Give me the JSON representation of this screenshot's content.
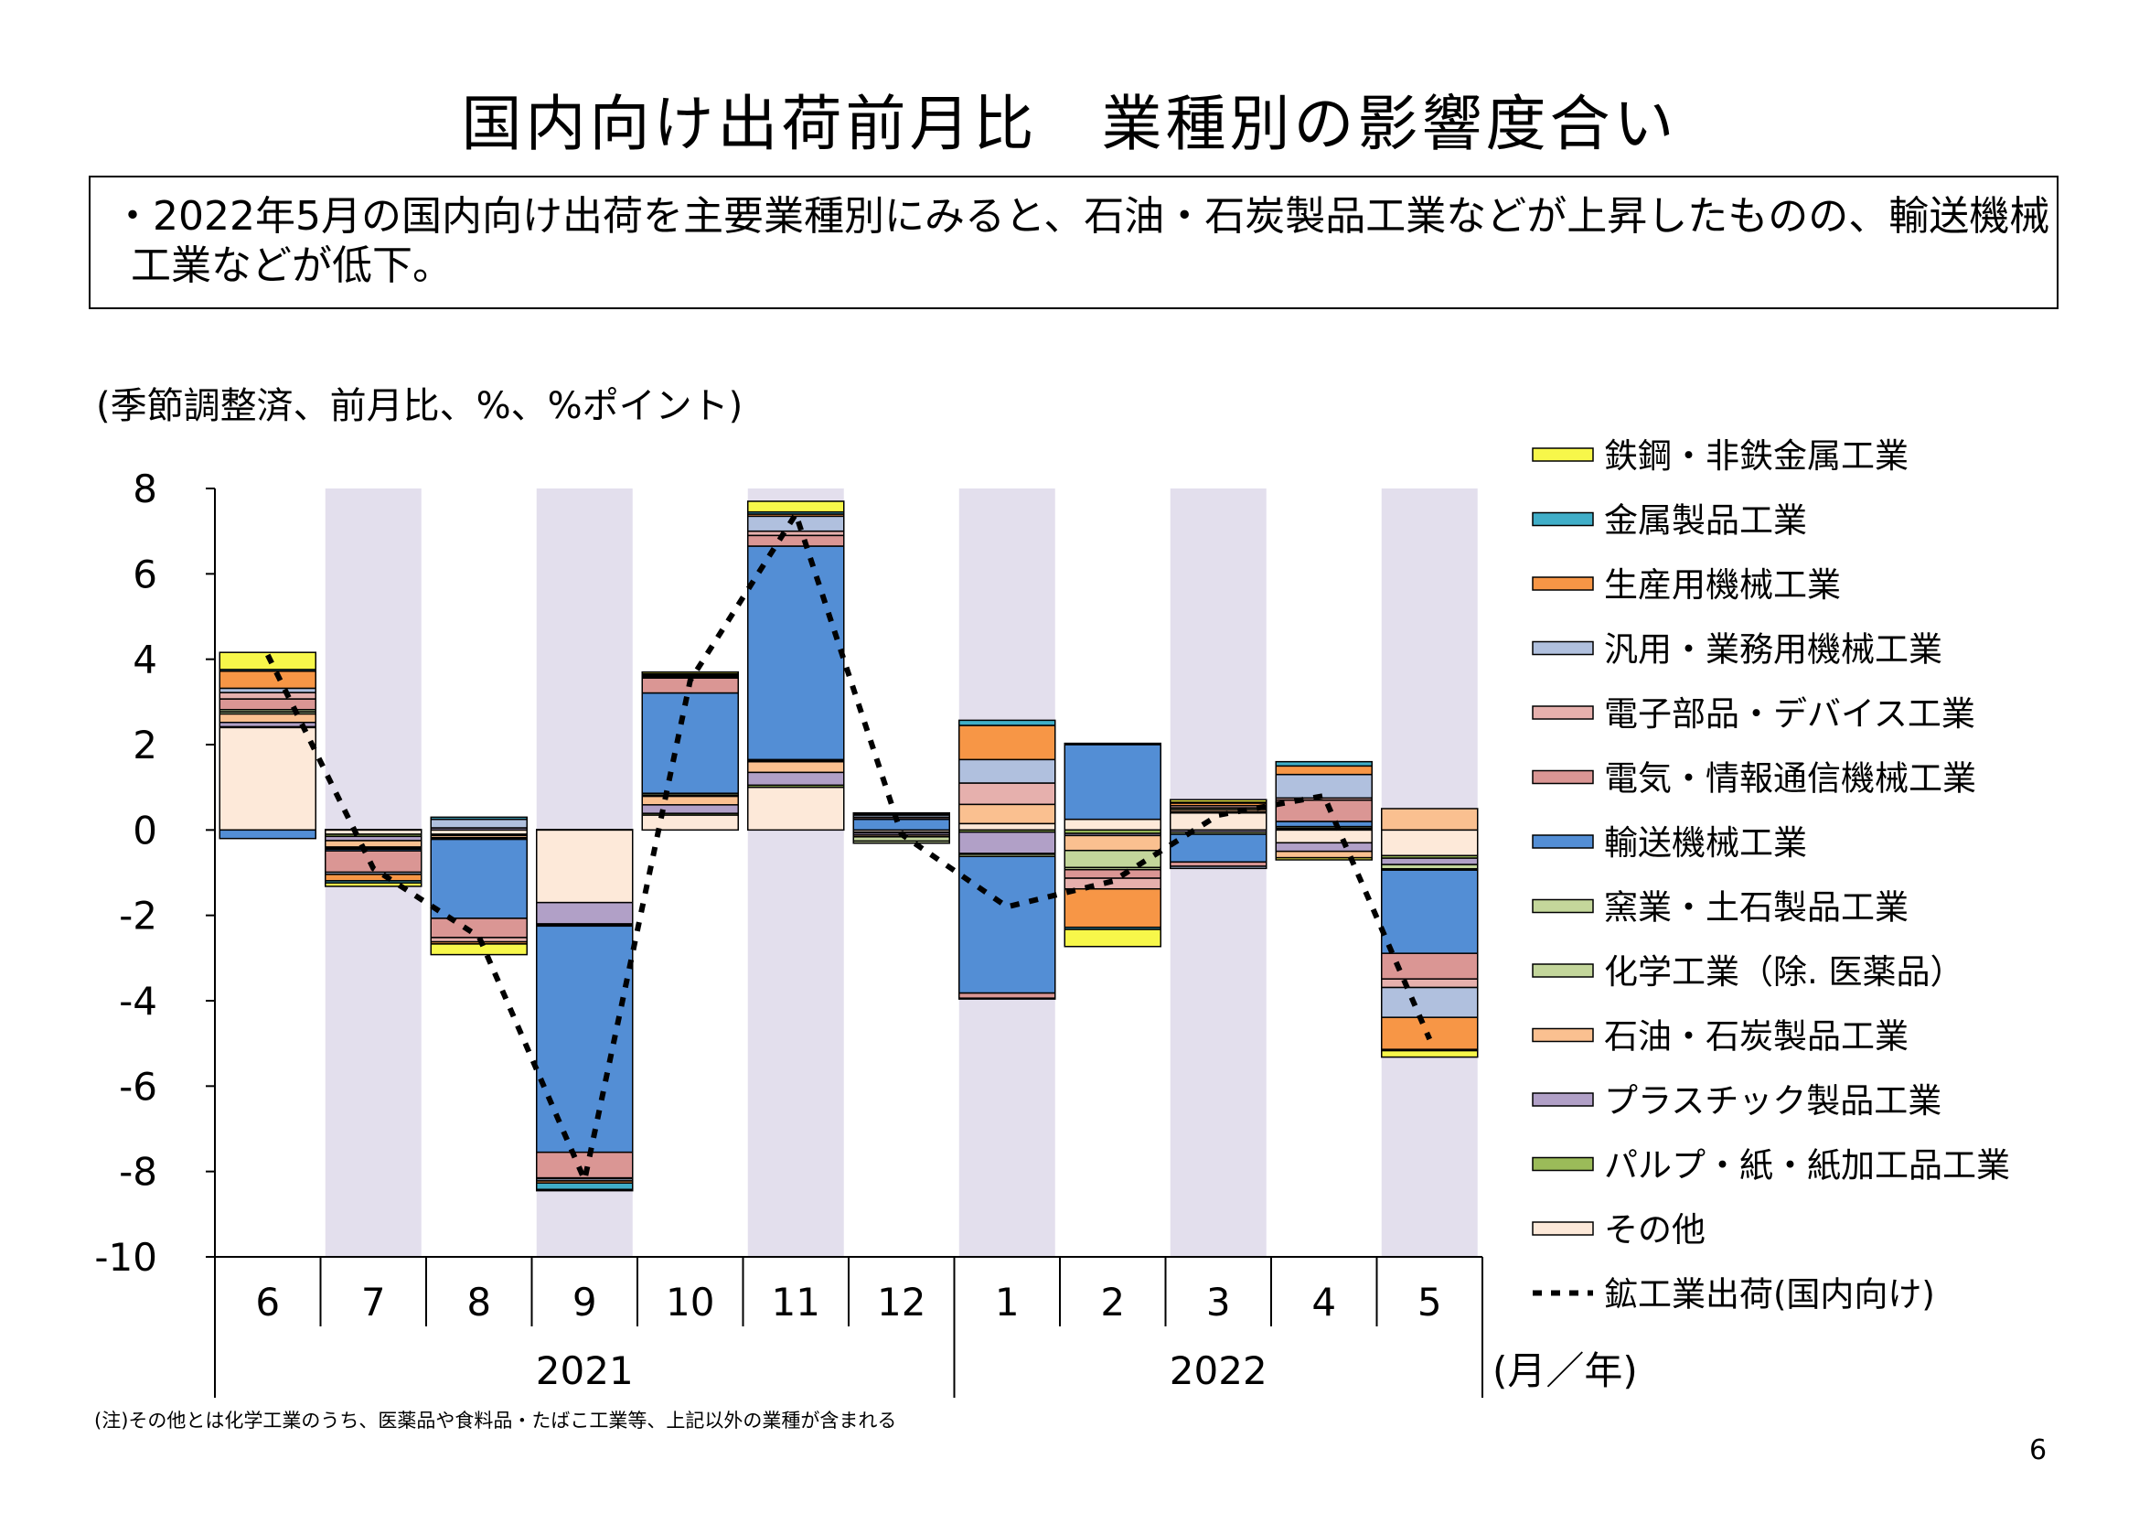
{
  "title": "国内向け出荷前月比　業種別の影響度合い",
  "summary": "・2022年5月の国内向け出荷を主要業種別にみると、石油・石炭製品工業などが上昇したものの、輸送機械工業などが低下。",
  "footnote": "(注)その他とは化学工業のうち、医薬品や食料品・たばこ工業等、上記以外の業種が含まれる",
  "page_number": "6",
  "chart_data": {
    "type": "bar",
    "stacked": true,
    "unit_label": "(季節調整済、前月比、%、%ポイント)",
    "ylim": [
      -10,
      8
    ],
    "yticks": [
      8,
      6,
      4,
      2,
      0,
      -2,
      -4,
      -6,
      -8,
      -10
    ],
    "categories": [
      "6",
      "7",
      "8",
      "9",
      "10",
      "11",
      "12",
      "1",
      "2",
      "3",
      "4",
      "5"
    ],
    "year_labels": [
      {
        "label": "2021",
        "from_index": 0,
        "to_index": 6
      },
      {
        "label": "2022",
        "from_index": 7,
        "to_index": 11
      }
    ],
    "x_unit": "(月／年)",
    "shaded_columns": [
      1,
      3,
      5,
      7,
      9,
      11
    ],
    "shade_color": "#e3dfed",
    "legend_position": "right",
    "series": [
      {
        "name": "鉄鋼・非鉄金属工業",
        "color": "#f7f74a",
        "values": [
          0.4,
          -0.08,
          -0.25,
          -0.03,
          0.04,
          0.25,
          0.02,
          -0.02,
          -0.4,
          0.06,
          -0.05,
          -0.15
        ]
      },
      {
        "name": "金属製品工業",
        "color": "#40aec8",
        "values": [
          0.04,
          -0.05,
          0.05,
          -0.15,
          0.03,
          0.05,
          0.01,
          0.12,
          -0.05,
          0.02,
          0.1,
          -0.03
        ]
      },
      {
        "name": "生産用機械工業",
        "color": "#f79646",
        "values": [
          0.4,
          -0.15,
          -0.05,
          -0.05,
          0.02,
          0.05,
          0.02,
          0.8,
          -0.9,
          0.06,
          0.2,
          -0.75
        ]
      },
      {
        "name": "汎用・業務用機械工業",
        "color": "#b0c0de",
        "values": [
          0.1,
          -0.05,
          0.2,
          -0.05,
          0.02,
          0.35,
          0.05,
          0.55,
          0.03,
          -0.05,
          0.55,
          -0.7
        ]
      },
      {
        "name": "電子部品・デバイス工業",
        "color": "#e6b0ad",
        "values": [
          0.15,
          0.01,
          -0.1,
          -0.02,
          0.03,
          0.1,
          0.04,
          0.5,
          -0.25,
          0.05,
          0.05,
          -0.2
        ]
      },
      {
        "name": "電気・情報通信機械工業",
        "color": "#da9694",
        "values": [
          0.25,
          -0.5,
          -0.45,
          -0.6,
          0.35,
          0.25,
          0.01,
          -0.12,
          -0.2,
          -0.1,
          0.5,
          -0.6
        ]
      },
      {
        "name": "輸送機械工業",
        "color": "#538ed5",
        "values": [
          -0.2,
          -0.04,
          -1.85,
          -5.3,
          2.35,
          5.0,
          0.25,
          -3.2,
          1.75,
          -0.65,
          0.12,
          -1.95
        ]
      },
      {
        "name": "窯業・土石製品工業",
        "color": "#c4d79b",
        "values": [
          0.05,
          -0.03,
          -0.02,
          -0.02,
          0.04,
          0.03,
          -0.05,
          -0.05,
          -0.05,
          0.04,
          0.04,
          -0.03
        ]
      },
      {
        "name": "化学工業（除. 医薬品）",
        "color": "#c3d69b",
        "values": [
          0.05,
          -0.02,
          -0.02,
          -0.01,
          0.03,
          0.02,
          -0.1,
          -0.02,
          -0.4,
          -0.05,
          0.02,
          -0.1
        ]
      },
      {
        "name": "石油・石炭製品工業",
        "color": "#fac090",
        "values": [
          0.2,
          -0.15,
          -0.05,
          -0.02,
          0.2,
          0.25,
          -0.04,
          0.45,
          -0.35,
          0.05,
          -0.15,
          0.5
        ]
      },
      {
        "name": "プラスチック製品工業",
        "color": "#b1a0c7",
        "values": [
          0.1,
          -0.1,
          0.05,
          -0.5,
          0.2,
          0.3,
          -0.05,
          -0.5,
          -0.05,
          -0.05,
          -0.2,
          -0.15
        ]
      },
      {
        "name": "パルプ・紙・紙加工品工業",
        "color": "#9bbb59",
        "values": [
          0.02,
          -0.05,
          -0.03,
          0.01,
          0.04,
          0.05,
          -0.02,
          -0.05,
          -0.08,
          0.03,
          0.02,
          -0.06
        ]
      },
      {
        "name": "その他",
        "color": "#fde9d9",
        "values": [
          2.4,
          -0.1,
          -0.1,
          -1.7,
          0.35,
          1.0,
          -0.05,
          0.15,
          0.25,
          0.4,
          -0.3,
          -0.6
        ]
      }
    ],
    "line": {
      "name": "鉱工業出荷(国内向け)",
      "color": "#000000",
      "style": "dotted",
      "values": [
        4.1,
        -0.9,
        -2.5,
        -8.2,
        3.5,
        7.4,
        -0.1,
        -1.8,
        -1.2,
        0.35,
        0.8,
        -4.9
      ]
    }
  }
}
